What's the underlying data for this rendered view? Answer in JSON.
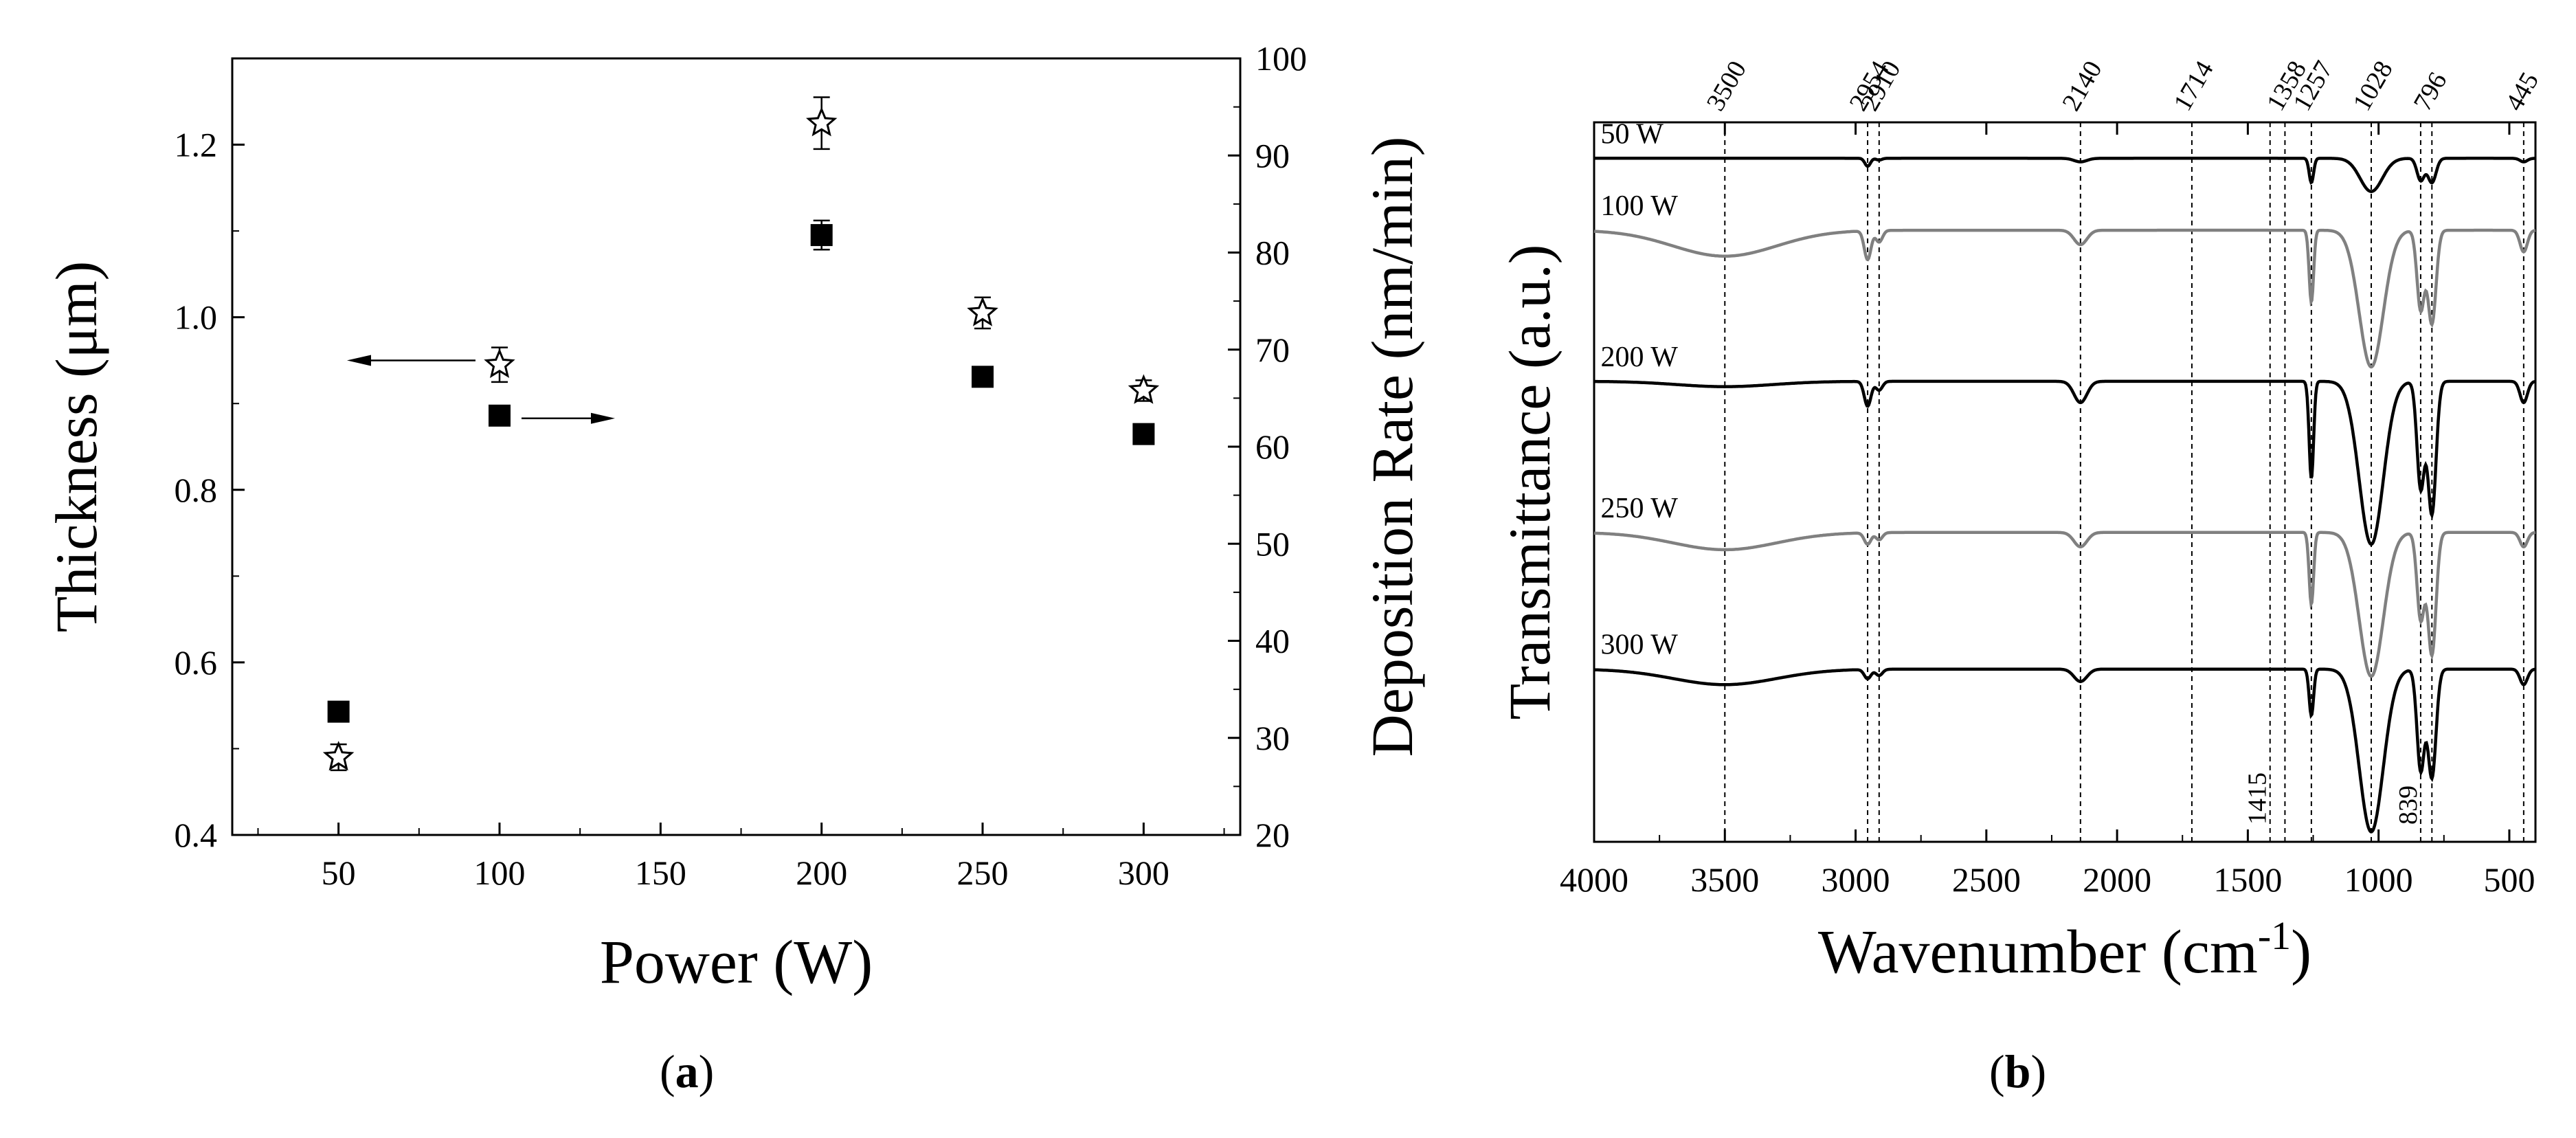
{
  "chart_data": [
    {
      "panel": "a",
      "type": "scatter",
      "xlabel": "Power (W)",
      "ylabel": "Thickness (μm)",
      "y2label": "Deposition Rate (nm/min)",
      "xlim": [
        17,
        330
      ],
      "ylim": [
        0.4,
        1.3
      ],
      "y2lim": [
        20,
        100
      ],
      "xticks": [
        50,
        100,
        150,
        200,
        250,
        300
      ],
      "yticks": [
        0.4,
        0.6,
        0.8,
        1.0,
        1.2
      ],
      "ytick_labels": [
        "0.4",
        "0.6",
        "0.8",
        "1.0",
        "1.2"
      ],
      "y2ticks": [
        20,
        30,
        40,
        50,
        60,
        70,
        80,
        90,
        100
      ],
      "series": [
        {
          "name": "Thickness",
          "marker": "star",
          "axis": "left",
          "x": [
            50,
            100,
            200,
            250,
            300
          ],
          "y": [
            0.49,
            0.945,
            1.225,
            1.005,
            0.915
          ],
          "err": [
            0.015,
            0.02,
            0.03,
            0.018,
            0.012
          ]
        },
        {
          "name": "Deposition Rate",
          "marker": "square",
          "axis": "right",
          "x": [
            50,
            100,
            200,
            250,
            300
          ],
          "y": [
            32.7,
            63.2,
            81.8,
            67.2,
            61.3
          ],
          "err": [
            0,
            0,
            1.5,
            0,
            0
          ]
        }
      ],
      "arrows": [
        {
          "points_to": "left axis",
          "near": [
            100,
            0.95
          ]
        },
        {
          "points_to": "right axis",
          "near": [
            100,
            63.2
          ]
        }
      ]
    },
    {
      "panel": "b",
      "type": "line",
      "xlabel": "Wavenumber (cm",
      "xlabel_sup": "-1",
      "xlabel_end": ")",
      "ylabel": "Transmittance (a.u.)",
      "xlim": [
        4000,
        400
      ],
      "xticks": [
        4000,
        3500,
        3000,
        2500,
        2000,
        1500,
        1000,
        500
      ],
      "series": [
        {
          "name": "50 W",
          "color": "#000000",
          "baseline": 0.05,
          "scale": 0.4,
          "bands": [
            [
              3500,
              300,
              0
            ],
            [
              2954,
              15,
              0.18
            ],
            [
              2910,
              15,
              0.04
            ],
            [
              2140,
              35,
              0.08
            ],
            [
              1257,
              12,
              0.55
            ],
            [
              1028,
              60,
              0.75
            ],
            [
              839,
              20,
              0.5
            ],
            [
              796,
              22,
              0.55
            ],
            [
              445,
              20,
              0.08
            ]
          ]
        },
        {
          "name": "100 W",
          "color": "#808080",
          "baseline": 0.15,
          "scale": 1.3,
          "bands": [
            [
              3500,
              280,
              0.18
            ],
            [
              2954,
              18,
              0.2
            ],
            [
              2910,
              18,
              0.08
            ],
            [
              2140,
              35,
              0.1
            ],
            [
              1257,
              12,
              0.5
            ],
            [
              1028,
              65,
              0.95
            ],
            [
              839,
              20,
              0.55
            ],
            [
              796,
              22,
              0.65
            ],
            [
              445,
              20,
              0.15
            ]
          ]
        },
        {
          "name": "200 W",
          "color": "#000000",
          "baseline": 0.36,
          "scale": 1.6,
          "bands": [
            [
              3500,
              260,
              0.03
            ],
            [
              2954,
              18,
              0.14
            ],
            [
              2910,
              18,
              0.05
            ],
            [
              2140,
              35,
              0.12
            ],
            [
              1257,
              12,
              0.55
            ],
            [
              1028,
              65,
              0.92
            ],
            [
              839,
              20,
              0.6
            ],
            [
              796,
              22,
              0.75
            ],
            [
              445,
              20,
              0.12
            ]
          ]
        },
        {
          "name": "250 W",
          "color": "#808080",
          "baseline": 0.57,
          "scale": 1.3,
          "bands": [
            [
              3500,
              280,
              0.12
            ],
            [
              2954,
              18,
              0.08
            ],
            [
              2910,
              18,
              0.05
            ],
            [
              2140,
              35,
              0.1
            ],
            [
              1257,
              12,
              0.5
            ],
            [
              1028,
              65,
              1.0
            ],
            [
              839,
              20,
              0.6
            ],
            [
              796,
              22,
              0.85
            ],
            [
              445,
              20,
              0.1
            ]
          ]
        },
        {
          "name": "300 W",
          "color": "#000000",
          "baseline": 0.76,
          "scale": 1.4,
          "bands": [
            [
              3500,
              280,
              0.1
            ],
            [
              2954,
              18,
              0.06
            ],
            [
              2910,
              18,
              0.04
            ],
            [
              2140,
              35,
              0.08
            ],
            [
              1257,
              12,
              0.3
            ],
            [
              1028,
              65,
              1.05
            ],
            [
              839,
              20,
              0.65
            ],
            [
              796,
              22,
              0.7
            ],
            [
              445,
              20,
              0.1
            ]
          ]
        }
      ],
      "reference_lines": [
        3500,
        2954,
        2910,
        2140,
        1714,
        1415,
        1358,
        1257,
        1028,
        839,
        796,
        445
      ],
      "top_labels": [
        "3500",
        "2954",
        "2910",
        "2140",
        "1714",
        "1358",
        "1257",
        "1028",
        "796",
        "445"
      ],
      "top_label_positions": [
        3500,
        2954,
        2910,
        2140,
        1714,
        1358,
        1257,
        1028,
        796,
        445
      ],
      "bottom_labels": [
        "1415",
        "839"
      ],
      "bottom_label_positions": [
        1415,
        839
      ]
    }
  ],
  "panel_labels": {
    "a": "a",
    "b": "b"
  }
}
